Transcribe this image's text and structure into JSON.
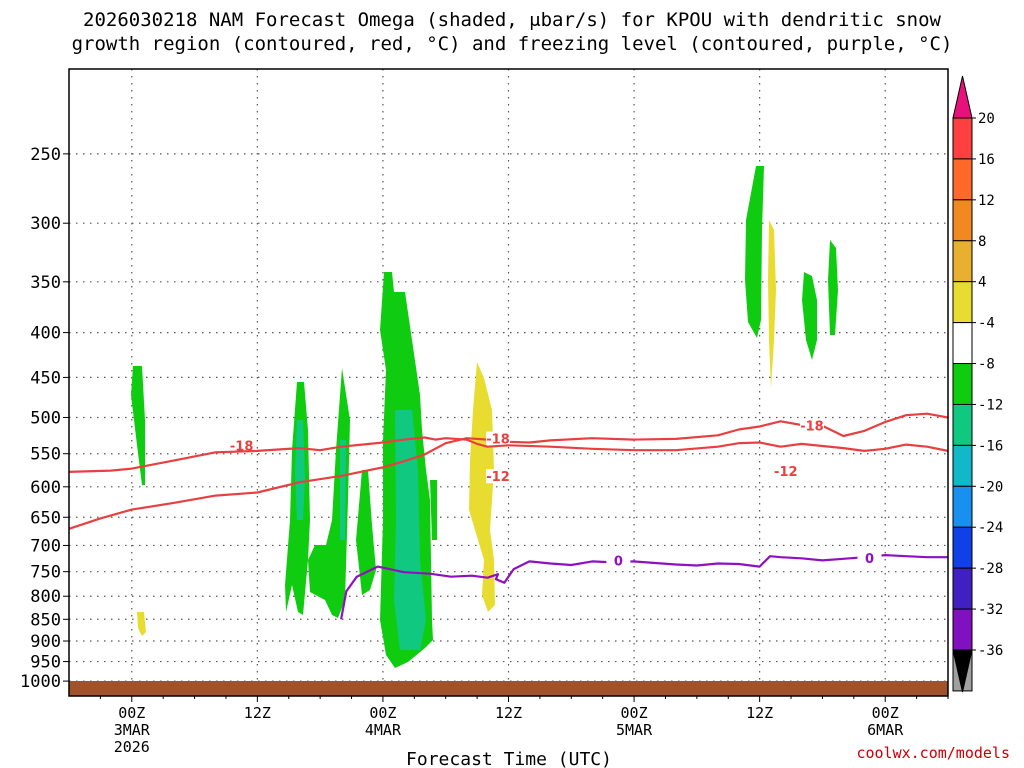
{
  "chart_data": {
    "type": "heatmap",
    "title_line1": "2026030218 NAM Forecast Omega (shaded, μbar/s) for KPOU with dendritic snow",
    "title_line2": "growth region (contoured, red, °C) and freezing level (contoured, purple, °C)",
    "xlabel": "Forecast Time (UTC)",
    "ylabel": "",
    "credit": "coolwx.com/models",
    "y_scale": "log-pressure",
    "ylim": [
      1040,
      200
    ],
    "xlim": [
      -6,
      78
    ],
    "grid": true,
    "y_ticks": [
      250,
      300,
      350,
      400,
      450,
      500,
      550,
      600,
      650,
      700,
      750,
      800,
      850,
      900,
      950,
      1000
    ],
    "x_ticks": [
      {
        "h": 0,
        "l1": "00Z",
        "l2": "3MAR",
        "l3": "2026"
      },
      {
        "h": 12,
        "l1": "12Z",
        "l2": "",
        "l3": ""
      },
      {
        "h": 24,
        "l1": "00Z",
        "l2": "4MAR",
        "l3": ""
      },
      {
        "h": 36,
        "l1": "12Z",
        "l2": "",
        "l3": ""
      },
      {
        "h": 48,
        "l1": "00Z",
        "l2": "5MAR",
        "l3": ""
      },
      {
        "h": 60,
        "l1": "12Z",
        "l2": "",
        "l3": ""
      },
      {
        "h": 72,
        "l1": "00Z",
        "l2": "6MAR",
        "l3": ""
      }
    ],
    "colorbar": {
      "labels": [
        "20",
        "16",
        "12",
        "8",
        "4",
        "-4",
        "-8",
        "-12",
        "-16",
        "-20",
        "-24",
        "-28",
        "-32",
        "-36"
      ],
      "colors": [
        "#ff4040",
        "#ff6a2a",
        "#f08a20",
        "#e8b030",
        "#e8dc30",
        "#ffffff",
        "#10cc10",
        "#10c880",
        "#10b8c8",
        "#1890f0",
        "#1040e8",
        "#4020c0",
        "#8010c0",
        "#a0a0a0"
      ],
      "top_color": "#e8107a",
      "bottom_color": "#000000"
    },
    "series": [
      {
        "name": "-18",
        "color": "#e84040",
        "label_at": [
          [
            10.5,
            540
          ],
          [
            35.0,
            530
          ],
          [
            65.0,
            512
          ]
        ],
        "points": [
          [
            -6,
            670
          ],
          [
            -3,
            652
          ],
          [
            0,
            637
          ],
          [
            4,
            626
          ],
          [
            8,
            614
          ],
          [
            12,
            609
          ],
          [
            16,
            593
          ],
          [
            20,
            583
          ],
          [
            24,
            570
          ],
          [
            26,
            561
          ],
          [
            28,
            551
          ],
          [
            30,
            535
          ],
          [
            32,
            528
          ],
          [
            34,
            530
          ],
          [
            36,
            533
          ],
          [
            38,
            534
          ],
          [
            40,
            531
          ],
          [
            44,
            528
          ],
          [
            48,
            530
          ],
          [
            52,
            529
          ],
          [
            56,
            524
          ],
          [
            58,
            516
          ],
          [
            60,
            512
          ],
          [
            62,
            505
          ],
          [
            64,
            510
          ],
          [
            66,
            511
          ],
          [
            68,
            525
          ],
          [
            70,
            518
          ],
          [
            72,
            506
          ],
          [
            74,
            497
          ],
          [
            76,
            495
          ],
          [
            78,
            500
          ]
        ]
      },
      {
        "name": "-12",
        "color": "#e84040",
        "label_at": [
          [
            35.0,
            585
          ],
          [
            62.5,
            577
          ]
        ],
        "points": [
          [
            -6,
            577
          ],
          [
            -2,
            575
          ],
          [
            0,
            572
          ],
          [
            4,
            560
          ],
          [
            8,
            548
          ],
          [
            12,
            546
          ],
          [
            16,
            542
          ],
          [
            18,
            545
          ],
          [
            20,
            540
          ],
          [
            22,
            537
          ],
          [
            24,
            534
          ],
          [
            26,
            530
          ],
          [
            28,
            527
          ],
          [
            29,
            530
          ],
          [
            30,
            528
          ],
          [
            32,
            530
          ],
          [
            33,
            536
          ],
          [
            34,
            540
          ],
          [
            36,
            538
          ],
          [
            40,
            540
          ],
          [
            44,
            543
          ],
          [
            48,
            545
          ],
          [
            52,
            545
          ],
          [
            56,
            540
          ],
          [
            58,
            535
          ],
          [
            60,
            534
          ],
          [
            62,
            540
          ],
          [
            64,
            536
          ],
          [
            68,
            542
          ],
          [
            70,
            546
          ],
          [
            72,
            543
          ],
          [
            74,
            537
          ],
          [
            76,
            540
          ],
          [
            78,
            546
          ]
        ]
      },
      {
        "name": "0",
        "color": "#9010c0",
        "label_at": [
          [
            46.5,
            730
          ],
          [
            70.5,
            725
          ]
        ],
        "points": [
          [
            20,
            850
          ],
          [
            20.5,
            790
          ],
          [
            21.5,
            760
          ],
          [
            23.5,
            740
          ],
          [
            26,
            751
          ],
          [
            28.5,
            754
          ],
          [
            30.5,
            760
          ],
          [
            32.5,
            758
          ],
          [
            34,
            762
          ],
          [
            35,
            755
          ],
          [
            34.8,
            765
          ],
          [
            35.6,
            772
          ],
          [
            36.5,
            745
          ],
          [
            38,
            730
          ],
          [
            40,
            734
          ],
          [
            42,
            737
          ],
          [
            44,
            730
          ],
          [
            46,
            732
          ],
          [
            48,
            730
          ],
          [
            50,
            733
          ],
          [
            52,
            736
          ],
          [
            54,
            738
          ],
          [
            56,
            734
          ],
          [
            58,
            735
          ],
          [
            60,
            740
          ],
          [
            61,
            720
          ],
          [
            62,
            722
          ],
          [
            64,
            724
          ],
          [
            66,
            728
          ],
          [
            68,
            725
          ],
          [
            70,
            722
          ],
          [
            72,
            718
          ],
          [
            74,
            720
          ],
          [
            76,
            722
          ],
          [
            78,
            722
          ]
        ]
      }
    ]
  }
}
